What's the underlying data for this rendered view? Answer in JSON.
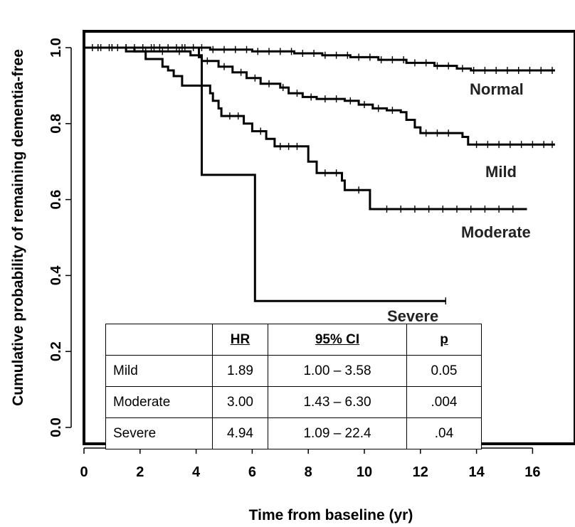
{
  "chart_data": {
    "type": "line",
    "xlabel": "Time from baseline (yr)",
    "ylabel": "Cumulative probability of remaining dementia-free",
    "xlim": [
      0,
      17.5
    ],
    "ylim": [
      -0.05,
      1.05
    ],
    "x_ticks": [
      "0",
      "2",
      "4",
      "6",
      "8",
      "10",
      "12",
      "14",
      "16"
    ],
    "y_ticks": [
      "0.0",
      "0.2",
      "0.4",
      "0.6",
      "0.8",
      "1.0"
    ],
    "grid": false,
    "series": [
      {
        "name": "Normal",
        "steps": [
          [
            0,
            1.0
          ],
          [
            4.5,
            0.995
          ],
          [
            6.0,
            0.99
          ],
          [
            7.5,
            0.985
          ],
          [
            8.5,
            0.98
          ],
          [
            9.5,
            0.975
          ],
          [
            10.5,
            0.968
          ],
          [
            11.5,
            0.96
          ],
          [
            12.5,
            0.952
          ],
          [
            13.3,
            0.945
          ],
          [
            13.8,
            0.94
          ],
          [
            16.8,
            0.94
          ]
        ],
        "censor_x": [
          0.3,
          0.6,
          0.9,
          1.2,
          1.5,
          1.8,
          2.1,
          2.4,
          2.7,
          3.0,
          3.3,
          3.6,
          3.9,
          4.2,
          4.6,
          5.0,
          5.4,
          5.8,
          6.2,
          6.6,
          7.0,
          7.4,
          7.8,
          8.2,
          8.6,
          9.0,
          9.4,
          9.8,
          10.2,
          10.6,
          11.0,
          11.4,
          11.8,
          12.2,
          12.6,
          13.0,
          13.5,
          13.9,
          14.3,
          14.7,
          15.1,
          15.5,
          15.9,
          16.3,
          16.7
        ]
      },
      {
        "name": "Mild",
        "steps": [
          [
            0,
            1.0
          ],
          [
            1.8,
            0.99
          ],
          [
            3.8,
            0.98
          ],
          [
            4.2,
            0.965
          ],
          [
            4.8,
            0.95
          ],
          [
            5.3,
            0.935
          ],
          [
            5.8,
            0.92
          ],
          [
            6.3,
            0.905
          ],
          [
            7.0,
            0.895
          ],
          [
            7.3,
            0.88
          ],
          [
            7.8,
            0.87
          ],
          [
            8.3,
            0.865
          ],
          [
            9.3,
            0.86
          ],
          [
            9.8,
            0.85
          ],
          [
            10.3,
            0.84
          ],
          [
            10.8,
            0.835
          ],
          [
            11.3,
            0.83
          ],
          [
            11.5,
            0.81
          ],
          [
            11.8,
            0.79
          ],
          [
            12.0,
            0.775
          ],
          [
            13.5,
            0.765
          ],
          [
            13.7,
            0.745
          ],
          [
            16.8,
            0.745
          ]
        ],
        "censor_x": [
          0.5,
          1.0,
          1.5,
          2.2,
          2.8,
          3.4,
          4.4,
          5.0,
          5.6,
          6.1,
          6.6,
          7.1,
          7.6,
          8.1,
          8.6,
          9.0,
          9.5,
          10.0,
          10.5,
          11.0,
          12.2,
          12.6,
          13.0,
          14.0,
          14.4,
          14.8,
          15.2,
          15.6,
          16.0,
          16.4,
          16.7
        ]
      },
      {
        "name": "Moderate",
        "steps": [
          [
            0,
            1.0
          ],
          [
            1.5,
            0.99
          ],
          [
            2.2,
            0.97
          ],
          [
            2.8,
            0.95
          ],
          [
            3.0,
            0.94
          ],
          [
            3.2,
            0.925
          ],
          [
            3.5,
            0.9
          ],
          [
            4.5,
            0.88
          ],
          [
            4.6,
            0.86
          ],
          [
            4.8,
            0.84
          ],
          [
            4.9,
            0.82
          ],
          [
            5.7,
            0.8
          ],
          [
            6.0,
            0.78
          ],
          [
            6.5,
            0.76
          ],
          [
            6.8,
            0.74
          ],
          [
            8.0,
            0.7
          ],
          [
            8.3,
            0.67
          ],
          [
            9.2,
            0.65
          ],
          [
            9.3,
            0.625
          ],
          [
            10.2,
            0.575
          ],
          [
            15.8,
            0.575
          ]
        ],
        "censor_x": [
          0.5,
          1.0,
          5.2,
          5.5,
          6.3,
          7.0,
          7.3,
          7.6,
          8.6,
          9.0,
          9.8,
          10.8,
          11.3,
          11.8,
          12.3,
          12.8,
          13.3,
          13.8,
          14.3,
          14.8,
          15.3
        ]
      },
      {
        "name": "Severe",
        "steps": [
          [
            0,
            1.0
          ],
          [
            4.1,
            0.975
          ],
          [
            4.2,
            0.665
          ],
          [
            6.0,
            0.665
          ],
          [
            6.1,
            0.333
          ],
          [
            12.9,
            0.333
          ]
        ],
        "censor_x": [
          0.5,
          1.5,
          2.5,
          3.5,
          12.9
        ]
      }
    ],
    "series_labels": [
      "Normal",
      "Mild",
      "Moderate",
      "Severe"
    ],
    "table": {
      "headers": [
        "",
        "HR",
        "95% CI",
        "p"
      ],
      "rows": [
        [
          "Mild",
          "1.89",
          "1.00 – 3.58",
          "0.05"
        ],
        [
          "Moderate",
          "3.00",
          "1.43 – 6.30",
          ".004"
        ],
        [
          "Severe",
          "4.94",
          "1.09 – 22.4",
          ".04"
        ]
      ]
    }
  }
}
